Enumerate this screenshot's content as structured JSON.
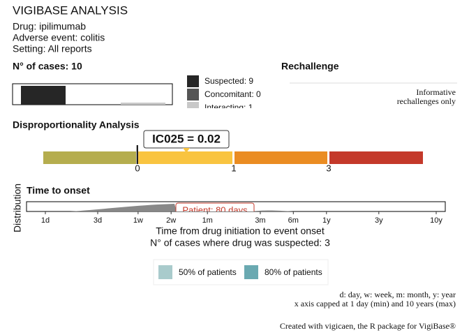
{
  "header": {
    "title": "VIGIBASE ANALYSIS",
    "drug": "Drug: ipilimumab",
    "event": "Adverse event: colitis",
    "setting": "Setting: All reports"
  },
  "cases": {
    "title": "N° of cases: 10",
    "segments": [
      {
        "name": "Suspected: 9",
        "value": 9,
        "color": "#262626"
      },
      {
        "name": "Concomitant: 0",
        "value": 0,
        "color": "#555555"
      },
      {
        "name": "Interacting: 1",
        "value": 1,
        "color": "#c8c8c8"
      }
    ]
  },
  "rechallenge": {
    "title": "Rechallenge",
    "note": [
      "Informative",
      "rechallenges only"
    ]
  },
  "disproportionality": {
    "title": "Disproportionality Analysis",
    "label": "IC025 = 0.02",
    "value": 0.02,
    "bands": [
      "#b5ad4e",
      "#f9c440",
      "#ea8c22",
      "#c4392a"
    ],
    "ticks": [
      0,
      1,
      3
    ]
  },
  "onset": {
    "title": "Time to onset",
    "ylabel": "Distribution",
    "xlabel": "Time from drug initiation to event onset",
    "n_label": "N° of cases where drug was suspected: 3",
    "annotation": "Patient: 80 days",
    "log_scale": true,
    "xlim": [
      1,
      3650
    ],
    "xticks": [
      {
        "value": 1,
        "label": "1d"
      },
      {
        "value": 3,
        "label": "3d"
      },
      {
        "value": 7,
        "label": "1w"
      },
      {
        "value": 14,
        "label": "2w"
      },
      {
        "value": 30,
        "label": "1m"
      },
      {
        "value": 91,
        "label": "3m"
      },
      {
        "value": 182,
        "label": "6m"
      },
      {
        "value": 365,
        "label": "1y"
      },
      {
        "value": 1095,
        "label": "3y"
      },
      {
        "value": 3650,
        "label": "10y"
      }
    ],
    "legend": [
      {
        "name": "50% of patients",
        "color": "#a9cbcc"
      },
      {
        "name": "80% of patients",
        "color": "#6aa9b1"
      }
    ]
  },
  "footnotes": [
    "d: day, w: week, m: month, y: year",
    "x axis capped at 1 day (min) and 10 years (max)"
  ],
  "credit": "Created with vigicaen, the R package for VigiBase®"
}
